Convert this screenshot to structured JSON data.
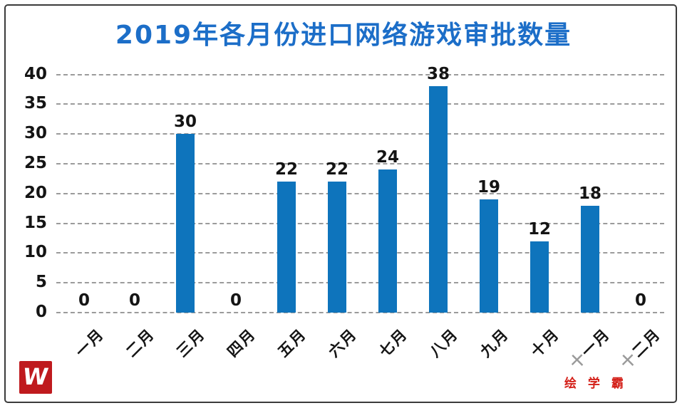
{
  "chart_data": {
    "type": "bar",
    "title": "2019年各月份进口网络游戏审批数量",
    "categories": [
      "一月",
      "二月",
      "三月",
      "四月",
      "五月",
      "六月",
      "七月",
      "八月",
      "九月",
      "十月",
      "十一月",
      "十二月"
    ],
    "values": [
      0,
      0,
      30,
      0,
      22,
      22,
      24,
      38,
      19,
      12,
      18,
      0
    ],
    "xlabel": "",
    "ylabel": "",
    "ylim": [
      0,
      40
    ],
    "yticks": [
      0,
      5,
      10,
      15,
      20,
      25,
      30,
      35,
      40
    ],
    "grid": "horizontal-dashed",
    "legend": "none",
    "data_labels": "above-bars",
    "bar_color": "#0e74bc",
    "title_color": "#1c6ec8",
    "text_color": "#141414",
    "grid_color": "#9b9b9b",
    "gray_tint_first_char_indices": [
      10,
      11
    ]
  },
  "watermark": {
    "logo_letter": "W",
    "logo_bg": "#bf1a1e",
    "text": "绘 学 霸",
    "text_color": "#d42019"
  }
}
